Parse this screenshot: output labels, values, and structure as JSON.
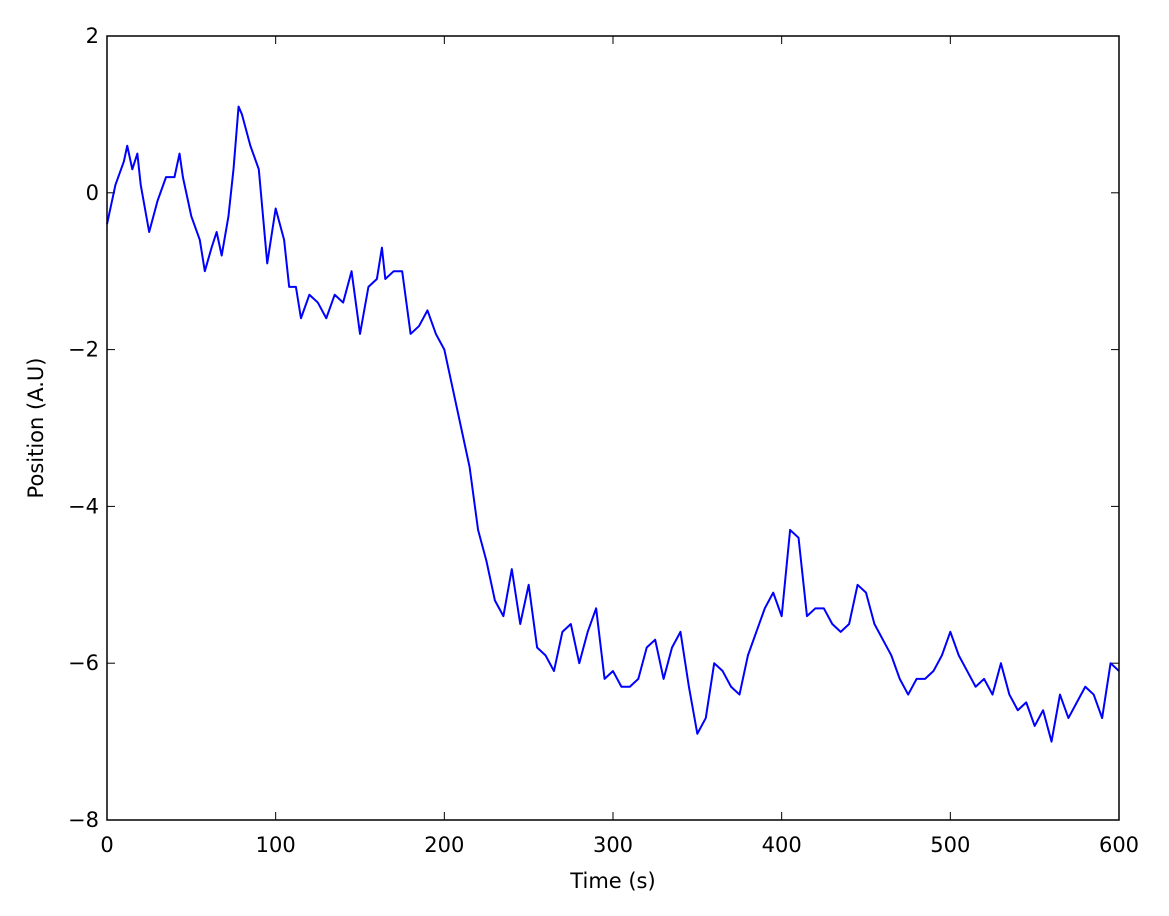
{
  "chart_data": {
    "type": "line",
    "x_label": "Time (s)",
    "y_label": "Position (A.U)",
    "xlim": [
      0,
      600
    ],
    "ylim": [
      -8,
      2
    ],
    "xticks": [
      0,
      100,
      200,
      300,
      400,
      500,
      600
    ],
    "yticks": [
      {
        "value": -8,
        "label": "−8"
      },
      {
        "value": -6,
        "label": "−6"
      },
      {
        "value": -4,
        "label": "−4"
      },
      {
        "value": -2,
        "label": "−2"
      },
      0,
      2
    ],
    "grid": false,
    "series": [
      {
        "name": "Position",
        "color": "#0000ff",
        "x": [
          0,
          5,
          10,
          12,
          15,
          18,
          20,
          25,
          30,
          35,
          40,
          43,
          45,
          48,
          50,
          55,
          58,
          62,
          65,
          68,
          72,
          75,
          78,
          80,
          85,
          90,
          95,
          100,
          105,
          108,
          112,
          115,
          120,
          125,
          130,
          135,
          140,
          145,
          150,
          155,
          160,
          163,
          165,
          170,
          175,
          180,
          185,
          190,
          195,
          200,
          205,
          210,
          215,
          220,
          225,
          230,
          235,
          240,
          245,
          250,
          255,
          260,
          265,
          270,
          275,
          280,
          285,
          290,
          295,
          300,
          305,
          310,
          315,
          320,
          325,
          330,
          335,
          340,
          345,
          350,
          355,
          360,
          365,
          370,
          375,
          380,
          385,
          390,
          395,
          400,
          405,
          410,
          415,
          420,
          425,
          430,
          435,
          440,
          445,
          450,
          455,
          460,
          465,
          470,
          475,
          480,
          485,
          490,
          495,
          500,
          505,
          510,
          515,
          520,
          525,
          530,
          535,
          540,
          545,
          550,
          555,
          560,
          565,
          570,
          575,
          580,
          585,
          590,
          595,
          600
        ],
        "values": [
          -0.4,
          0.1,
          0.4,
          0.6,
          0.3,
          0.5,
          0.1,
          -0.5,
          -0.1,
          0.2,
          0.2,
          0.5,
          0.2,
          -0.1,
          -0.3,
          -0.6,
          -1.0,
          -0.7,
          -0.5,
          -0.8,
          -0.3,
          0.3,
          1.1,
          1.0,
          0.6,
          0.3,
          -0.9,
          -0.2,
          -0.6,
          -1.2,
          -1.2,
          -1.6,
          -1.3,
          -1.4,
          -1.6,
          -1.3,
          -1.4,
          -1.0,
          -1.8,
          -1.2,
          -1.1,
          -0.7,
          -1.1,
          -1.0,
          -1.0,
          -1.8,
          -1.7,
          -1.5,
          -1.8,
          -2.0,
          -2.5,
          -3.0,
          -3.5,
          -4.3,
          -4.7,
          -5.2,
          -5.4,
          -4.8,
          -5.5,
          -5.0,
          -5.8,
          -5.9,
          -6.1,
          -5.6,
          -5.5,
          -6.0,
          -5.6,
          -5.3,
          -6.2,
          -6.1,
          -6.3,
          -6.3,
          -6.2,
          -5.8,
          -5.7,
          -6.2,
          -5.8,
          -5.6,
          -6.3,
          -6.9,
          -6.7,
          -6.0,
          -6.1,
          -6.3,
          -6.4,
          -5.9,
          -5.6,
          -5.3,
          -5.1,
          -5.4,
          -4.3,
          -4.4,
          -5.4,
          -5.3,
          -5.3,
          -5.5,
          -5.6,
          -5.5,
          -5.0,
          -5.1,
          -5.5,
          -5.7,
          -5.9,
          -6.2,
          -6.4,
          -6.2,
          -6.2,
          -6.1,
          -5.9,
          -5.6,
          -5.9,
          -6.1,
          -6.3,
          -6.2,
          -6.4,
          -6.0,
          -6.4,
          -6.6,
          -6.5,
          -6.8,
          -6.6,
          -7.0,
          -6.4,
          -6.7,
          -6.5,
          -6.3,
          -6.4,
          -6.7,
          -6.0,
          -6.1
        ]
      }
    ]
  }
}
